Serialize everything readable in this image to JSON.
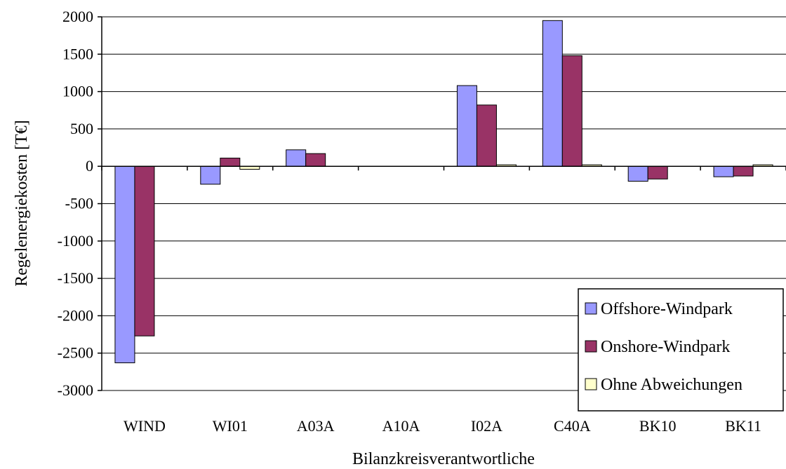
{
  "chart_data": {
    "type": "bar",
    "title": "",
    "xlabel": "Bilanzkreisverantwortliche",
    "ylabel": "Regelenergiekosten [T€]",
    "categories": [
      "WIND",
      "WI01",
      "A03A",
      "A10A",
      "I02A",
      "C40A",
      "BK10",
      "BK11"
    ],
    "series": [
      {
        "name": "Offshore-Windpark",
        "color": "#9999ff",
        "values": [
          -2630,
          -240,
          220,
          0,
          1080,
          1950,
          -200,
          -140
        ]
      },
      {
        "name": "Onshore-Windpark",
        "color": "#993366",
        "values": [
          -2270,
          110,
          170,
          0,
          820,
          1480,
          -170,
          -130
        ]
      },
      {
        "name": "Ohne Abweichungen",
        "color": "#ffffcc",
        "values": [
          0,
          -40,
          0,
          0,
          20,
          20,
          0,
          20
        ]
      }
    ],
    "ylim": [
      -3000,
      2000
    ],
    "yticks": [
      "2000",
      "1500",
      "1000",
      "500",
      "0",
      "-500",
      "-1000",
      "-1500",
      "-2000",
      "-2500",
      "-3000"
    ],
    "grid": true,
    "legend_position": "bottom-right"
  }
}
